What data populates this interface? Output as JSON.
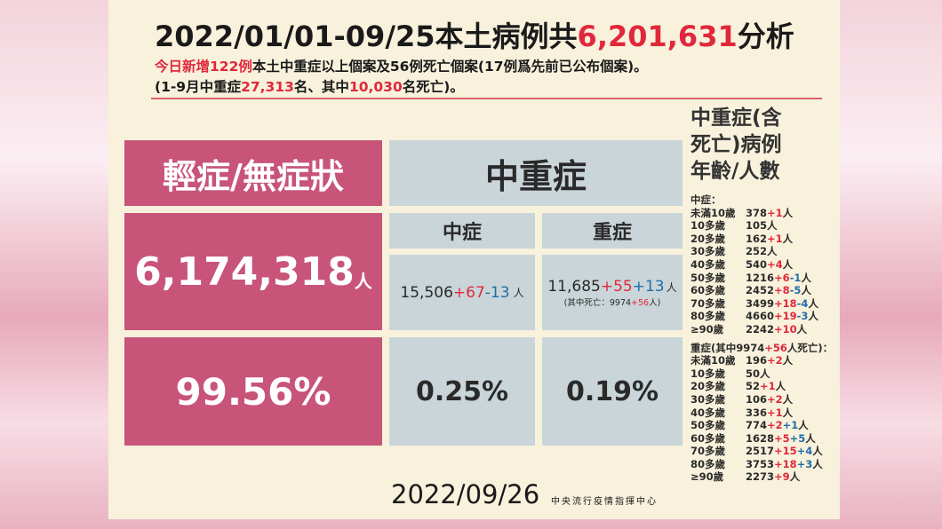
{
  "header": {
    "title": {
      "prefix": "2022/01/01-09/25本土病例共",
      "highlight": "6,201,631",
      "suffix": "分析"
    },
    "line1": {
      "highlight": "今日新增122例",
      "rest": "本土中重症以上個案及56例死亡個案(17例爲先前已公布個案)。"
    },
    "line2": [
      "(1-9月中重症",
      "27,313",
      "名、其中",
      "10,030",
      "名死亡)。"
    ]
  },
  "table": {
    "mild_header": "輕症/無症狀",
    "severe_header": "中重症",
    "moderate_header": "中症",
    "critical_header": "重症",
    "unit": "人",
    "mild_count": "6,174,318",
    "moderate_count": {
      "base": "15,506",
      "changes": [
        "+67",
        "-13"
      ]
    },
    "critical_count": {
      "base": "11,685",
      "changes": [
        "+55",
        "+13"
      ]
    },
    "critical_deaths": {
      "prefix": "(其中死亡：9974",
      "change": "+56",
      "suffix": "人)"
    },
    "mild_pct": "99.56%",
    "moderate_pct": "0.25%",
    "critical_pct": "0.19%"
  },
  "footer": {
    "date": "2022/09/26",
    "agency": "中央流行疫情指揮中心"
  },
  "side": {
    "title": [
      "中重症(含",
      "死亡)病例",
      "年齡/人數"
    ],
    "unit": "人",
    "moderate": {
      "label": "中症：",
      "rows": [
        {
          "age": "未滿10歲",
          "count": "378",
          "changes": [
            "+1"
          ]
        },
        {
          "age": "10多歲",
          "count": "105",
          "changes": []
        },
        {
          "age": "20多歲",
          "count": "162",
          "changes": [
            "+1"
          ]
        },
        {
          "age": "30多歲",
          "count": "252",
          "changes": []
        },
        {
          "age": "40多歲",
          "count": "540",
          "changes": [
            "+4"
          ]
        },
        {
          "age": "50多歲",
          "count": "1216",
          "changes": [
            "+6",
            "-1"
          ]
        },
        {
          "age": "60多歲",
          "count": "2452",
          "changes": [
            "+8",
            "-5"
          ]
        },
        {
          "age": "70多歲",
          "count": "3499",
          "changes": [
            "+18",
            "-4"
          ]
        },
        {
          "age": "80多歲",
          "count": "4660",
          "changes": [
            "+19",
            "-3"
          ]
        },
        {
          "age": "≥90歲",
          "count": "2242",
          "changes": [
            "+10"
          ]
        }
      ]
    },
    "critical": {
      "label_prefix": "重症(其中9974",
      "label_change": "+56",
      "label_suffix": "人死亡)：",
      "rows": [
        {
          "age": "未滿10歲",
          "count": "196",
          "changes": [
            "+2"
          ]
        },
        {
          "age": "10多歲",
          "count": "50",
          "changes": []
        },
        {
          "age": "20多歲",
          "count": "52",
          "changes": [
            "+1"
          ]
        },
        {
          "age": "30多歲",
          "count": "106",
          "changes": [
            "+2"
          ]
        },
        {
          "age": "40多歲",
          "count": "336",
          "changes": [
            "+1"
          ]
        },
        {
          "age": "50多歲",
          "count": "774",
          "changes": [
            "+2",
            "+1"
          ]
        },
        {
          "age": "60多歲",
          "count": "1628",
          "changes": [
            "+5",
            "+5"
          ]
        },
        {
          "age": "70多歲",
          "count": "2517",
          "changes": [
            "+15",
            "+4"
          ]
        },
        {
          "age": "80多歲",
          "count": "3753",
          "changes": [
            "+18",
            "+3"
          ]
        },
        {
          "age": "≥90歲",
          "count": "2273",
          "changes": [
            "+9"
          ]
        }
      ]
    }
  }
}
